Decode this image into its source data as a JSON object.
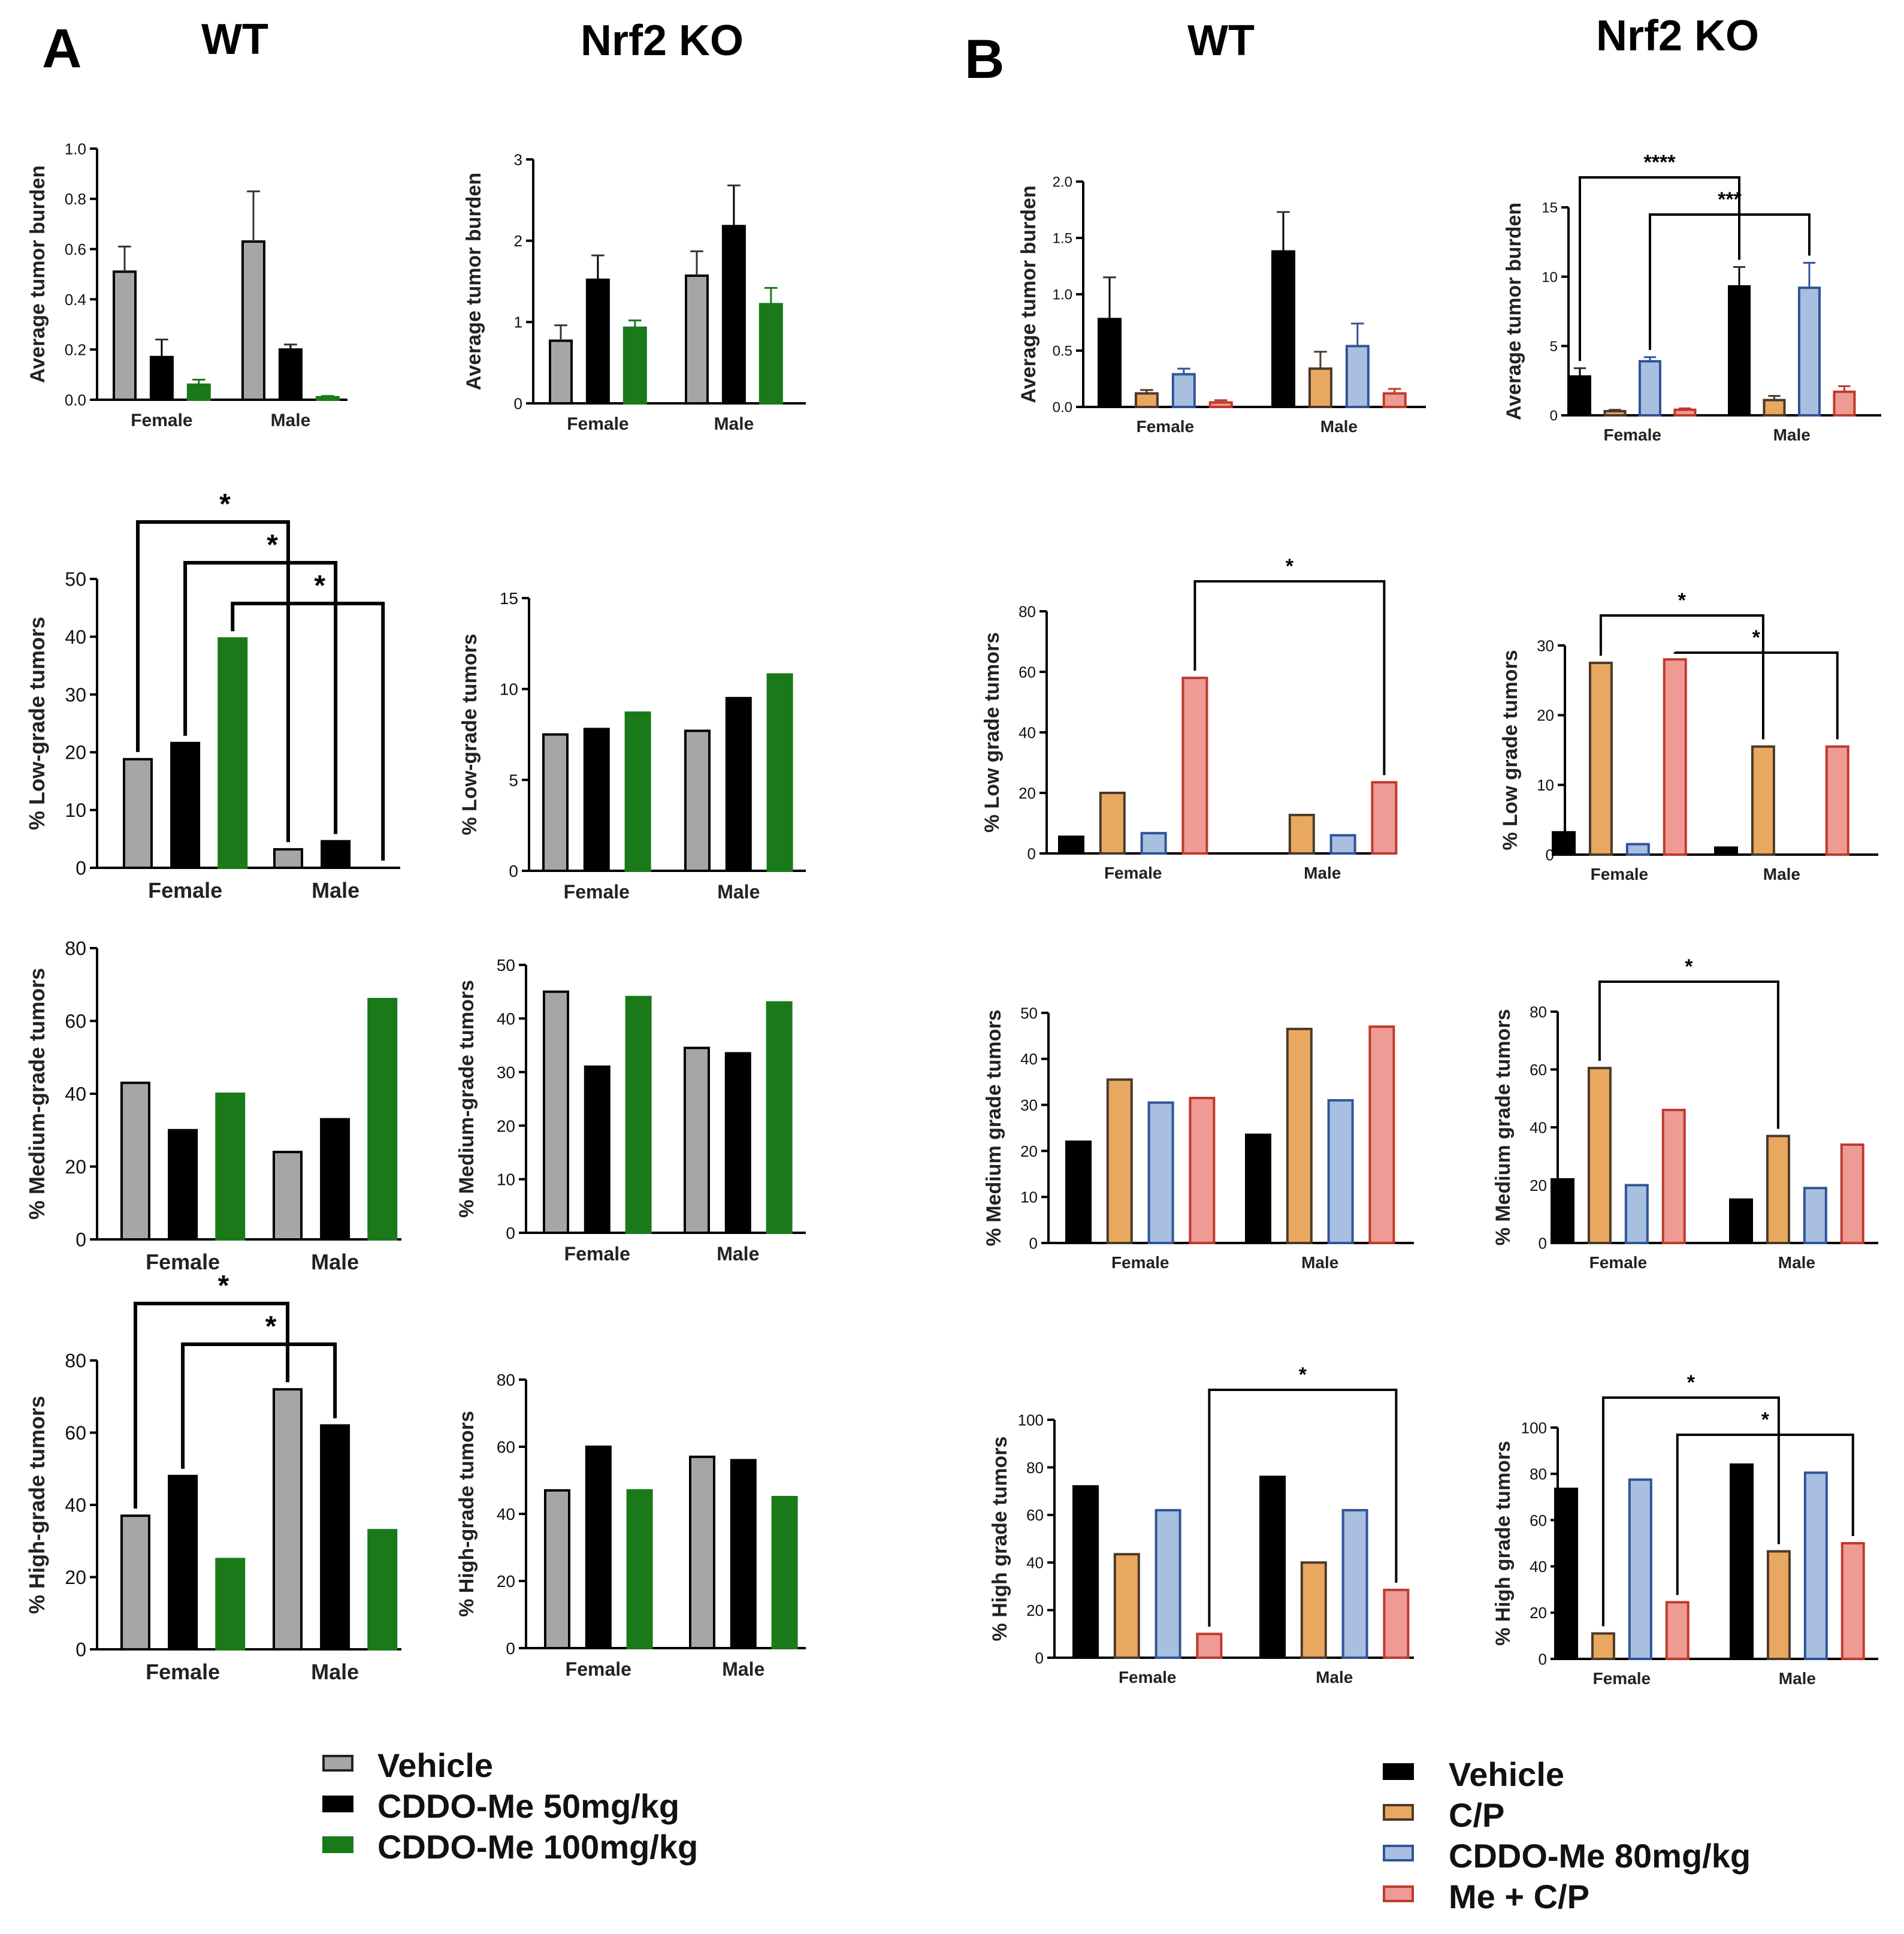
{
  "panels": {
    "A": {
      "letter": "A",
      "col_titles": [
        "WT",
        "Nrf2 KO"
      ]
    },
    "B": {
      "letter": "B",
      "col_titles": [
        "WT",
        "Nrf2 KO"
      ]
    }
  },
  "legend_A": {
    "items": [
      {
        "label": "Vehicle",
        "color": "#a6a6a6"
      },
      {
        "label": "CDDO-Me 50mg/kg",
        "color": "#000000"
      },
      {
        "label": "CDDO-Me 100mg/kg",
        "color": "#1a7a1a"
      }
    ]
  },
  "legend_B": {
    "items": [
      {
        "label": "Vehicle",
        "color": "#000000"
      },
      {
        "label": "C/P",
        "color": "#e9a860"
      },
      {
        "label": "CDDO-Me 80mg/kg",
        "color": "#a9bfe0"
      },
      {
        "label": "Me + C/P",
        "color": "#ee9a95"
      }
    ]
  },
  "chart_data": [
    {
      "id": "A_WT_burden",
      "panel": "A",
      "column": "WT",
      "type": "bar",
      "ylabel": "Average tumor burden",
      "categories": [
        "Female",
        "Male"
      ],
      "ylim": [
        0,
        1.0
      ],
      "yticks": [
        "0.0",
        "0.2",
        "0.4",
        "0.6",
        "0.8",
        "1.0"
      ],
      "series": [
        {
          "name": "Vehicle",
          "values": [
            0.51,
            0.63
          ],
          "errors": [
            0.1,
            0.2
          ]
        },
        {
          "name": "CDDO-Me 50mg/kg",
          "values": [
            0.17,
            0.2
          ],
          "errors": [
            0.07,
            0.02
          ]
        },
        {
          "name": "CDDO-Me 100mg/kg",
          "values": [
            0.06,
            0.01
          ],
          "errors": [
            0.02,
            0.005
          ]
        }
      ],
      "sig": []
    },
    {
      "id": "A_KO_burden",
      "panel": "A",
      "column": "Nrf2 KO",
      "type": "bar",
      "ylabel": "Average tumor burden",
      "categories": [
        "Female",
        "Male"
      ],
      "ylim": [
        0,
        3
      ],
      "yticks": [
        "0",
        "1",
        "2",
        "3"
      ],
      "series": [
        {
          "name": "Vehicle",
          "values": [
            0.77,
            1.57
          ],
          "errors": [
            0.19,
            0.3
          ]
        },
        {
          "name": "CDDO-Me 50mg/kg",
          "values": [
            1.52,
            2.18
          ],
          "errors": [
            0.3,
            0.5
          ]
        },
        {
          "name": "CDDO-Me 100mg/kg",
          "values": [
            0.93,
            1.22
          ],
          "errors": [
            0.09,
            0.2
          ]
        }
      ],
      "sig": []
    },
    {
      "id": "A_WT_low",
      "panel": "A",
      "column": "WT",
      "type": "bar",
      "ylabel": "% Low-grade tumors",
      "categories": [
        "Female",
        "Male"
      ],
      "ylim": [
        0,
        50
      ],
      "yticks": [
        "0",
        "10",
        "20",
        "30",
        "40",
        "50"
      ],
      "series": [
        {
          "name": "Vehicle",
          "values": [
            18.8,
            3.2
          ]
        },
        {
          "name": "CDDO-Me 50mg/kg",
          "values": [
            21.6,
            4.6
          ]
        },
        {
          "name": "CDDO-Me 100mg/kg",
          "values": [
            39.7,
            0
          ]
        }
      ],
      "sig": [
        {
          "from": [
            0,
            0
          ],
          "to": [
            1,
            0
          ],
          "label": "*",
          "level": 1
        },
        {
          "from": [
            0,
            1
          ],
          "to": [
            1,
            1
          ],
          "label": "*",
          "level": 2
        },
        {
          "from": [
            0,
            2
          ],
          "to": [
            1,
            2
          ],
          "label": "*",
          "level": 3
        }
      ]
    },
    {
      "id": "A_KO_low",
      "panel": "A",
      "column": "Nrf2 KO",
      "type": "bar",
      "ylabel": "% Low-grade tumors",
      "categories": [
        "Female",
        "Male"
      ],
      "ylim": [
        0,
        15
      ],
      "yticks": [
        "0",
        "5",
        "10",
        "15"
      ],
      "series": [
        {
          "name": "Vehicle",
          "values": [
            7.5,
            7.7
          ]
        },
        {
          "name": "CDDO-Me 50mg/kg",
          "values": [
            7.8,
            9.5
          ]
        },
        {
          "name": "CDDO-Me 100mg/kg",
          "values": [
            8.7,
            10.8
          ]
        }
      ],
      "sig": []
    },
    {
      "id": "A_WT_med",
      "panel": "A",
      "column": "WT",
      "type": "bar",
      "ylabel": "% Medium-grade tumors",
      "categories": [
        "Female",
        "Male"
      ],
      "ylim": [
        0,
        80
      ],
      "yticks": [
        "0",
        "20",
        "40",
        "60",
        "80"
      ],
      "series": [
        {
          "name": "Vehicle",
          "values": [
            43,
            24
          ]
        },
        {
          "name": "CDDO-Me 50mg/kg",
          "values": [
            30,
            33
          ]
        },
        {
          "name": "CDDO-Me 100mg/kg",
          "values": [
            40,
            66
          ]
        }
      ],
      "sig": []
    },
    {
      "id": "A_KO_med",
      "panel": "A",
      "column": "Nrf2 KO",
      "type": "bar",
      "ylabel": "% Medium-grade tumors",
      "categories": [
        "Female",
        "Male"
      ],
      "ylim": [
        0,
        50
      ],
      "yticks": [
        "0",
        "10",
        "20",
        "30",
        "40",
        "50"
      ],
      "series": [
        {
          "name": "Vehicle",
          "values": [
            45,
            34.5
          ]
        },
        {
          "name": "CDDO-Me 50mg/kg",
          "values": [
            31,
            33.5
          ]
        },
        {
          "name": "CDDO-Me 100mg/kg",
          "values": [
            44,
            43
          ]
        }
      ],
      "sig": []
    },
    {
      "id": "A_WT_high",
      "panel": "A",
      "column": "WT",
      "type": "bar",
      "ylabel": "% High-grade tumors",
      "categories": [
        "Female",
        "Male"
      ],
      "ylim": [
        0,
        80
      ],
      "yticks": [
        "0",
        "20",
        "40",
        "60",
        "80"
      ],
      "series": [
        {
          "name": "Vehicle",
          "values": [
            37,
            72
          ]
        },
        {
          "name": "CDDO-Me 50mg/kg",
          "values": [
            48,
            62
          ]
        },
        {
          "name": "CDDO-Me 100mg/kg",
          "values": [
            25,
            33
          ]
        }
      ],
      "sig": [
        {
          "from": [
            0,
            0
          ],
          "to": [
            1,
            0
          ],
          "label": "*",
          "level": 1
        },
        {
          "from": [
            0,
            1
          ],
          "to": [
            1,
            1
          ],
          "label": "*",
          "level": 2
        }
      ]
    },
    {
      "id": "A_KO_high",
      "panel": "A",
      "column": "Nrf2 KO",
      "type": "bar",
      "ylabel": "% High-grade tumors",
      "categories": [
        "Female",
        "Male"
      ],
      "ylim": [
        0,
        80
      ],
      "yticks": [
        "0",
        "20",
        "40",
        "60",
        "80"
      ],
      "series": [
        {
          "name": "Vehicle",
          "values": [
            47,
            57
          ]
        },
        {
          "name": "CDDO-Me 50mg/kg",
          "values": [
            60,
            56
          ]
        },
        {
          "name": "CDDO-Me 100mg/kg",
          "values": [
            47,
            45
          ]
        }
      ],
      "sig": []
    },
    {
      "id": "B_WT_burden",
      "panel": "B",
      "column": "WT",
      "type": "bar",
      "ylabel": "Average tumor burden",
      "categories": [
        "Female",
        "Male"
      ],
      "ylim": [
        0,
        2.0
      ],
      "yticks": [
        "0.0",
        "0.5",
        "1.0",
        "1.5",
        "2.0"
      ],
      "series": [
        {
          "name": "Vehicle",
          "values": [
            0.78,
            1.38
          ],
          "errors": [
            0.37,
            0.35
          ]
        },
        {
          "name": "C/P",
          "values": [
            0.12,
            0.34
          ],
          "errors": [
            0.03,
            0.15
          ]
        },
        {
          "name": "CDDO-Me 80mg/kg",
          "values": [
            0.29,
            0.54
          ],
          "errors": [
            0.05,
            0.2
          ]
        },
        {
          "name": "Me + C/P",
          "values": [
            0.04,
            0.12
          ],
          "errors": [
            0.02,
            0.04
          ]
        }
      ],
      "sig": []
    },
    {
      "id": "B_KO_burden",
      "panel": "B",
      "column": "Nrf2 KO",
      "type": "bar",
      "ylabel": "Average tumor burden",
      "categories": [
        "Female",
        "Male"
      ],
      "ylim": [
        0,
        15
      ],
      "yticks": [
        "0",
        "5",
        "10",
        "15"
      ],
      "series": [
        {
          "name": "Vehicle",
          "values": [
            2.8,
            9.3
          ],
          "errors": [
            0.6,
            1.4
          ]
        },
        {
          "name": "C/P",
          "values": [
            0.3,
            1.1
          ],
          "errors": [
            0.1,
            0.3
          ]
        },
        {
          "name": "CDDO-Me 80mg/kg",
          "values": [
            3.9,
            9.2
          ],
          "errors": [
            0.3,
            1.8
          ]
        },
        {
          "name": "Me + C/P",
          "values": [
            0.4,
            1.7
          ],
          "errors": [
            0.1,
            0.4
          ]
        }
      ],
      "sig": [
        {
          "from": [
            0,
            0
          ],
          "to": [
            1,
            0
          ],
          "label": "****",
          "level": 1
        },
        {
          "from": [
            0,
            2
          ],
          "to": [
            1,
            2
          ],
          "label": "***",
          "level": 2
        }
      ]
    },
    {
      "id": "B_WT_low",
      "panel": "B",
      "column": "WT",
      "type": "bar",
      "ylabel": "% Low grade tumors",
      "categories": [
        "Female",
        "Male"
      ],
      "ylim": [
        0,
        80
      ],
      "yticks": [
        "0",
        "20",
        "40",
        "60",
        "80"
      ],
      "series": [
        {
          "name": "Vehicle",
          "values": [
            5.5,
            0
          ]
        },
        {
          "name": "C/P",
          "values": [
            20,
            12.7
          ]
        },
        {
          "name": "CDDO-Me 80mg/kg",
          "values": [
            6.7,
            6
          ]
        },
        {
          "name": "Me + C/P",
          "values": [
            58,
            23.5
          ]
        }
      ],
      "sig": [
        {
          "from": [
            0,
            3
          ],
          "to": [
            1,
            3
          ],
          "label": "*",
          "level": 1
        }
      ]
    },
    {
      "id": "B_KO_low",
      "panel": "B",
      "column": "Nrf2 KO",
      "type": "bar",
      "ylabel": "% Low grade tumors",
      "categories": [
        "Female",
        "Male"
      ],
      "ylim": [
        0,
        30
      ],
      "yticks": [
        "0",
        "10",
        "20",
        "30"
      ],
      "series": [
        {
          "name": "Vehicle",
          "values": [
            3.2,
            1
          ]
        },
        {
          "name": "C/P",
          "values": [
            27.5,
            15.5
          ]
        },
        {
          "name": "CDDO-Me 80mg/kg",
          "values": [
            1.5,
            0
          ]
        },
        {
          "name": "Me + C/P",
          "values": [
            28,
            15.5
          ]
        }
      ],
      "sig": [
        {
          "from": [
            0,
            1
          ],
          "to": [
            1,
            1
          ],
          "label": "*",
          "level": 1
        },
        {
          "from": [
            0,
            3
          ],
          "to": [
            1,
            3
          ],
          "label": "*",
          "level": 2
        }
      ]
    },
    {
      "id": "B_WT_med",
      "panel": "B",
      "column": "WT",
      "type": "bar",
      "ylabel": "% Medium grade tumors",
      "categories": [
        "Female",
        "Male"
      ],
      "ylim": [
        0,
        50
      ],
      "yticks": [
        "0",
        "10",
        "20",
        "30",
        "40",
        "50"
      ],
      "series": [
        {
          "name": "Vehicle",
          "values": [
            22,
            23.5
          ]
        },
        {
          "name": "C/P",
          "values": [
            35.5,
            46.5
          ]
        },
        {
          "name": "CDDO-Me 80mg/kg",
          "values": [
            30.5,
            31
          ]
        },
        {
          "name": "Me + C/P",
          "values": [
            31.5,
            47
          ]
        }
      ],
      "sig": []
    },
    {
      "id": "B_KO_med",
      "panel": "B",
      "column": "Nrf2 KO",
      "type": "bar",
      "ylabel": "% Medium grade tumors",
      "categories": [
        "Female",
        "Male"
      ],
      "ylim": [
        0,
        80
      ],
      "yticks": [
        "0",
        "20",
        "40",
        "60",
        "80"
      ],
      "series": [
        {
          "name": "Vehicle",
          "values": [
            22,
            15
          ]
        },
        {
          "name": "C/P",
          "values": [
            60.5,
            37
          ]
        },
        {
          "name": "CDDO-Me 80mg/kg",
          "values": [
            20,
            19
          ]
        },
        {
          "name": "Me + C/P",
          "values": [
            46,
            34
          ]
        }
      ],
      "sig": [
        {
          "from": [
            0,
            1
          ],
          "to": [
            1,
            1
          ],
          "label": "*",
          "level": 1
        }
      ]
    },
    {
      "id": "B_WT_high",
      "panel": "B",
      "column": "WT",
      "type": "bar",
      "ylabel": "% High grade tumors",
      "categories": [
        "Female",
        "Male"
      ],
      "ylim": [
        0,
        100
      ],
      "yticks": [
        "0",
        "20",
        "40",
        "60",
        "80",
        "100"
      ],
      "series": [
        {
          "name": "Vehicle",
          "values": [
            72,
            76
          ]
        },
        {
          "name": "C/P",
          "values": [
            43.5,
            40
          ]
        },
        {
          "name": "CDDO-Me 80mg/kg",
          "values": [
            62,
            62
          ]
        },
        {
          "name": "Me + C/P",
          "values": [
            10,
            28.5
          ]
        }
      ],
      "sig": [
        {
          "from": [
            0,
            3
          ],
          "to": [
            1,
            3
          ],
          "label": "*",
          "level": 1
        }
      ]
    },
    {
      "id": "B_KO_high",
      "panel": "B",
      "column": "Nrf2 KO",
      "type": "bar",
      "ylabel": "% High grade tumors",
      "categories": [
        "Female",
        "Male"
      ],
      "ylim": [
        0,
        100
      ],
      "yticks": [
        "0",
        "20",
        "40",
        "60",
        "80",
        "100"
      ],
      "series": [
        {
          "name": "Vehicle",
          "values": [
            73.5,
            84
          ]
        },
        {
          "name": "C/P",
          "values": [
            11,
            46.5
          ]
        },
        {
          "name": "CDDO-Me 80mg/kg",
          "values": [
            77.5,
            80.5
          ]
        },
        {
          "name": "Me + C/P",
          "values": [
            24.5,
            50
          ]
        }
      ],
      "sig": [
        {
          "from": [
            0,
            1
          ],
          "to": [
            1,
            1
          ],
          "label": "*",
          "level": 1
        },
        {
          "from": [
            0,
            3
          ],
          "to": [
            1,
            3
          ],
          "label": "*",
          "level": 2
        }
      ]
    }
  ]
}
